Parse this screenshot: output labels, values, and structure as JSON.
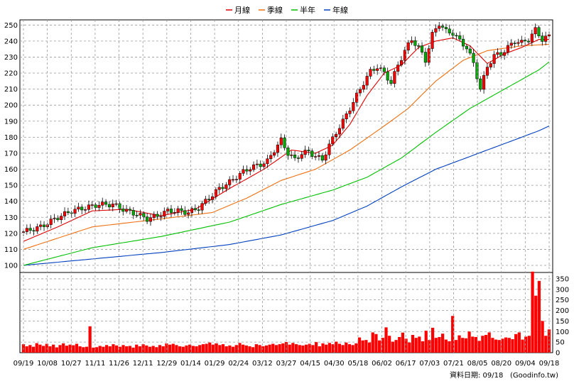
{
  "chart_data": {
    "type": "candlestick",
    "legend": [
      {
        "name": "月線",
        "color": "#e00000"
      },
      {
        "name": "季線",
        "color": "#f07010"
      },
      {
        "name": "半年",
        "color": "#00c000"
      },
      {
        "name": "年線",
        "color": "#0040c0"
      }
    ],
    "legend_position": "top-center",
    "grid": true,
    "price_axis": {
      "side": "left",
      "ylim": [
        100,
        255
      ],
      "ticks": [
        100,
        110,
        120,
        130,
        140,
        150,
        160,
        170,
        180,
        190,
        200,
        210,
        220,
        230,
        240,
        250
      ]
    },
    "volume_axis": {
      "side": "right",
      "ylim": [
        0,
        380
      ],
      "ticks": [
        0,
        50,
        100,
        150,
        200,
        250,
        300,
        350
      ]
    },
    "x_tick_labels": [
      "09/19",
      "10/08",
      "10/27",
      "11/11",
      "11/26",
      "12/11",
      "12/29",
      "01/14",
      "01/29",
      "02/24",
      "03/12",
      "03/27",
      "04/15",
      "04/30",
      "05/18",
      "06/02",
      "06/17",
      "07/03",
      "07/21",
      "08/05",
      "08/20",
      "09/04",
      "09/18"
    ],
    "close_series": [
      [
        0,
        121
      ],
      [
        5,
        124
      ],
      [
        10,
        130
      ],
      [
        14,
        134
      ],
      [
        18,
        136
      ],
      [
        22,
        138
      ],
      [
        26,
        138
      ],
      [
        30,
        134
      ],
      [
        33,
        132
      ],
      [
        36,
        129
      ],
      [
        39,
        131
      ],
      [
        42,
        134
      ],
      [
        45,
        134
      ],
      [
        48,
        133
      ],
      [
        51,
        136
      ],
      [
        54,
        142
      ],
      [
        57,
        148
      ],
      [
        60,
        152
      ],
      [
        63,
        157
      ],
      [
        66,
        161
      ],
      [
        69,
        163
      ],
      [
        71,
        165
      ],
      [
        73,
        172
      ],
      [
        75,
        178
      ],
      [
        77,
        170
      ],
      [
        79,
        166
      ],
      [
        81,
        170
      ],
      [
        83,
        171
      ],
      [
        85,
        168
      ],
      [
        87,
        166
      ],
      [
        89,
        175
      ],
      [
        91,
        183
      ],
      [
        93,
        190
      ],
      [
        95,
        198
      ],
      [
        97,
        206
      ],
      [
        99,
        214
      ],
      [
        101,
        221
      ],
      [
        103,
        224
      ],
      [
        105,
        220
      ],
      [
        107,
        214
      ],
      [
        109,
        225
      ],
      [
        111,
        234
      ],
      [
        113,
        241
      ],
      [
        115,
        236
      ],
      [
        117,
        228
      ],
      [
        119,
        244
      ],
      [
        121,
        251
      ],
      [
        123,
        246
      ],
      [
        125,
        245
      ],
      [
        127,
        240
      ],
      [
        129,
        236
      ],
      [
        131,
        226
      ],
      [
        133,
        210
      ],
      [
        135,
        224
      ],
      [
        137,
        231
      ],
      [
        139,
        232
      ],
      [
        141,
        236
      ],
      [
        143,
        240
      ],
      [
        145,
        239
      ],
      [
        147,
        241
      ],
      [
        149,
        247
      ],
      [
        151,
        241
      ],
      [
        153,
        243
      ]
    ],
    "ma_month": [
      [
        0,
        115
      ],
      [
        10,
        124
      ],
      [
        20,
        134
      ],
      [
        30,
        135
      ],
      [
        40,
        131
      ],
      [
        50,
        135
      ],
      [
        60,
        148
      ],
      [
        70,
        160
      ],
      [
        78,
        172
      ],
      [
        85,
        170
      ],
      [
        90,
        175
      ],
      [
        95,
        188
      ],
      [
        100,
        206
      ],
      [
        105,
        220
      ],
      [
        110,
        225
      ],
      [
        115,
        236
      ],
      [
        120,
        240
      ],
      [
        125,
        242
      ],
      [
        130,
        237
      ],
      [
        135,
        226
      ],
      [
        140,
        232
      ],
      [
        145,
        236
      ],
      [
        150,
        241
      ],
      [
        153,
        241
      ]
    ],
    "ma_quarter": [
      [
        0,
        110
      ],
      [
        20,
        124
      ],
      [
        40,
        129
      ],
      [
        55,
        133
      ],
      [
        65,
        142
      ],
      [
        75,
        153
      ],
      [
        85,
        160
      ],
      [
        95,
        172
      ],
      [
        105,
        187
      ],
      [
        112,
        198
      ],
      [
        120,
        215
      ],
      [
        128,
        228
      ],
      [
        135,
        234
      ],
      [
        145,
        237
      ],
      [
        153,
        238
      ]
    ],
    "ma_halfyear": [
      [
        0,
        100
      ],
      [
        20,
        111
      ],
      [
        40,
        118
      ],
      [
        60,
        127
      ],
      [
        75,
        138
      ],
      [
        90,
        147
      ],
      [
        100,
        155
      ],
      [
        110,
        167
      ],
      [
        120,
        183
      ],
      [
        130,
        198
      ],
      [
        140,
        210
      ],
      [
        150,
        222
      ],
      [
        153,
        227
      ]
    ],
    "ma_year": [
      [
        0,
        100
      ],
      [
        20,
        104
      ],
      [
        40,
        108
      ],
      [
        60,
        113
      ],
      [
        75,
        119
      ],
      [
        90,
        128
      ],
      [
        100,
        137
      ],
      [
        110,
        149
      ],
      [
        120,
        160
      ],
      [
        130,
        168
      ],
      [
        140,
        176
      ],
      [
        150,
        184
      ],
      [
        153,
        187
      ]
    ],
    "volume_values": [
      40,
      30,
      36,
      28,
      45,
      38,
      32,
      42,
      30,
      38,
      25,
      36,
      44,
      33,
      38,
      35,
      42,
      30,
      26,
      28,
      125,
      24,
      26,
      32,
      28,
      36,
      30,
      40,
      34,
      28,
      36,
      30,
      32,
      24,
      38,
      30,
      40,
      34,
      28,
      32,
      26,
      36,
      30,
      44,
      38,
      42,
      36,
      30,
      28,
      34,
      38,
      32,
      30,
      36,
      40,
      42,
      48,
      38,
      44,
      36,
      40,
      30,
      34,
      28,
      36,
      46,
      38,
      34,
      30,
      26,
      40,
      36,
      30,
      34,
      38,
      42,
      36,
      40,
      44,
      50,
      38,
      46,
      40,
      36,
      34,
      38,
      42,
      36,
      50,
      30,
      44,
      38,
      46,
      40,
      52,
      42,
      36,
      48,
      40,
      36,
      44,
      72,
      58,
      60,
      48,
      96,
      88,
      58,
      70,
      120,
      80,
      52,
      60,
      74,
      95,
      66,
      48,
      84,
      70,
      76,
      54,
      104,
      60,
      118,
      70,
      74,
      90,
      62,
      54,
      174,
      60,
      82,
      70,
      68,
      100,
      76,
      74,
      56,
      80,
      84,
      96,
      70,
      62,
      60,
      66,
      72,
      70,
      64,
      88,
      96,
      62,
      76,
      80,
      384,
      270,
      340,
      150,
      80,
      110
    ]
  },
  "footer": {
    "date_label": "資料日期: 09/18",
    "source": "(Goodinfo.tw)"
  }
}
